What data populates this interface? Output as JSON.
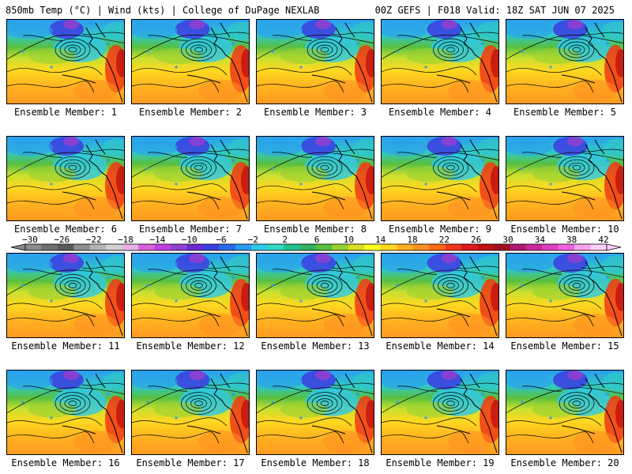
{
  "header": {
    "left_title": "850mb Temp (°C) | Wind (kts) | College of DuPage NEXLAB",
    "right_title": "00Z GEFS | F018 Valid: 18Z SAT JUN 07 2025"
  },
  "members": [
    "Ensemble Member: 1",
    "Ensemble Member: 2",
    "Ensemble Member: 3",
    "Ensemble Member: 4",
    "Ensemble Member: 5",
    "Ensemble Member: 6",
    "Ensemble Member: 7",
    "Ensemble Member: 8",
    "Ensemble Member: 9",
    "Ensemble Member: 10",
    "Ensemble Member: 11",
    "Ensemble Member: 12",
    "Ensemble Member: 13",
    "Ensemble Member: 14",
    "Ensemble Member: 15",
    "Ensemble Member: 16",
    "Ensemble Member: 17",
    "Ensemble Member: 18",
    "Ensemble Member: 19",
    "Ensemble Member: 20"
  ],
  "colorbar": {
    "labels": [
      "−30",
      "−26",
      "−22",
      "−18",
      "−14",
      "−10",
      "−6",
      "−2",
      "2",
      "6",
      "10",
      "14",
      "18",
      "22",
      "26",
      "30",
      "34",
      "38",
      "42"
    ],
    "colors": [
      "#8a8a8a",
      "#6e6e6e",
      "#5a5a5a",
      "#8e8e8e",
      "#b4b4b4",
      "#d0d0d0",
      "#e8b4e8",
      "#d860d8",
      "#c040e0",
      "#9040d0",
      "#6a2ad0",
      "#3c3ce0",
      "#2a6ae8",
      "#2a9cf0",
      "#30c8e8",
      "#30d8c0",
      "#20c090",
      "#30b060",
      "#58c040",
      "#98d030",
      "#d8e020",
      "#ffff20",
      "#ffd820",
      "#ffb020",
      "#ff9020",
      "#ff6818",
      "#f03818",
      "#e01818",
      "#c01010",
      "#a01020",
      "#b01870",
      "#c82898",
      "#e040c0",
      "#f060e0",
      "#f8a0f0",
      "#fcd0f8"
    ]
  }
}
